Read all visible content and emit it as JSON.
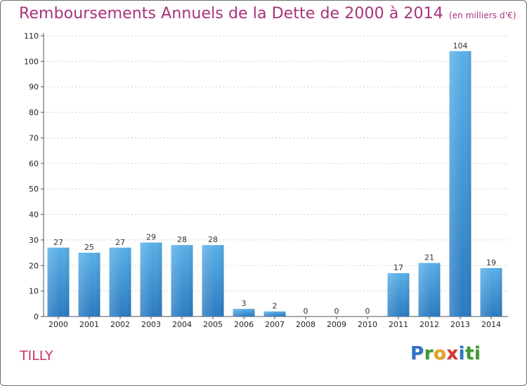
{
  "header": {
    "title": "Remboursements Annuels de la Dette de 2000 à 2014",
    "subtitle": "(en milliers d'€)"
  },
  "footer": {
    "commune": "TILLY",
    "brand": "Proxiti",
    "brand_letters": [
      "P",
      "r",
      "o",
      "x",
      "i",
      "ti"
    ]
  },
  "colors": {
    "title": "#a8327a",
    "commune": "#c8346b",
    "bar_top": "#5aafe8",
    "bar_bottom": "#2a7bc0",
    "grid": "#cfcfcf",
    "axis": "#555555"
  },
  "chart_data": {
    "type": "bar",
    "title": "Remboursements Annuels de la Dette de 2000 à 2014",
    "subtitle": "(en milliers d'€)",
    "xlabel": "",
    "ylabel": "",
    "categories": [
      "2000",
      "2001",
      "2002",
      "2003",
      "2004",
      "2005",
      "2006",
      "2007",
      "2008",
      "2009",
      "2010",
      "2011",
      "2012",
      "2013",
      "2014"
    ],
    "values": [
      27,
      25,
      27,
      29,
      28,
      28,
      3,
      2,
      0,
      0,
      0,
      17,
      21,
      104,
      19
    ],
    "ylim": [
      0,
      110
    ],
    "yticks": [
      0,
      10,
      20,
      30,
      40,
      50,
      60,
      70,
      80,
      90,
      100,
      110
    ],
    "grid": true,
    "data_labels": true
  }
}
